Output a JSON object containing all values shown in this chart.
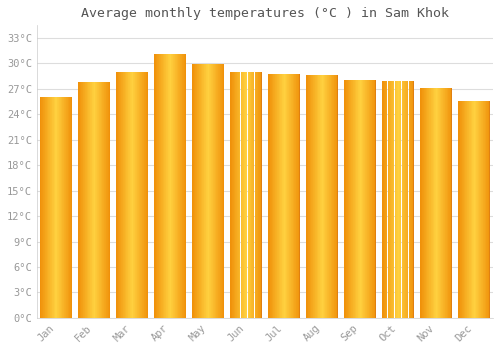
{
  "title": "Average monthly temperatures (°C ) in Sam Khok",
  "months": [
    "Jan",
    "Feb",
    "Mar",
    "Apr",
    "May",
    "Jun",
    "Jul",
    "Aug",
    "Sep",
    "Oct",
    "Nov",
    "Dec"
  ],
  "temperatures": [
    26.1,
    27.8,
    29.0,
    31.1,
    29.9,
    29.0,
    28.8,
    28.6,
    28.1,
    27.9,
    27.1,
    25.6
  ],
  "bar_color_center": "#FFD050",
  "bar_color_edge": "#F0920A",
  "background_color": "#FFFFFF",
  "grid_color": "#DDDDDD",
  "title_fontsize": 9.5,
  "tick_label_color": "#999999",
  "ylabel_ticks": [
    0,
    3,
    6,
    9,
    12,
    15,
    18,
    21,
    24,
    27,
    30,
    33
  ],
  "ylim": [
    0,
    34.5
  ],
  "font_family": "monospace",
  "bar_width": 0.82
}
